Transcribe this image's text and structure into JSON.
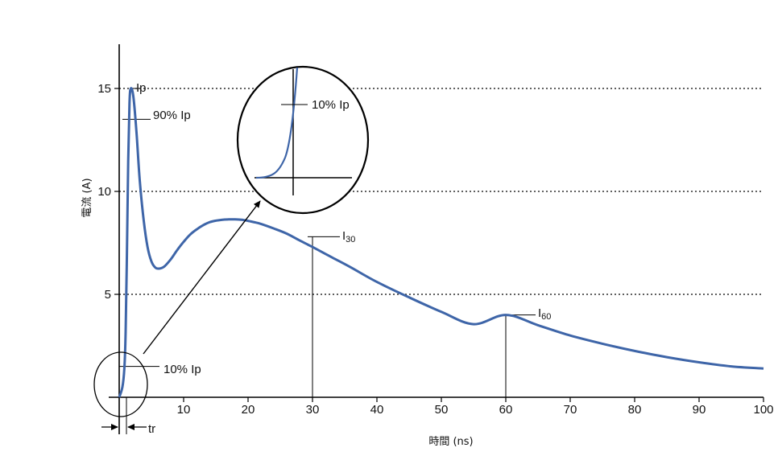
{
  "chart_data": {
    "type": "line",
    "xlabel": "時間 (ns)",
    "ylabel": "電流 (A)",
    "xlim": [
      0,
      100
    ],
    "ylim": [
      0,
      17
    ],
    "x_ticks": [
      "10",
      "20",
      "30",
      "40",
      "50",
      "60",
      "70",
      "80",
      "90",
      "100"
    ],
    "y_ticks": [
      "5",
      "10",
      "15"
    ],
    "grid": "horizontal dotted at 5, 10, 15",
    "line_color": "#3e65a8",
    "series": [
      {
        "x": [
          0,
          0.5,
          0.8,
          1,
          1.2,
          1.4,
          1.6,
          1.8,
          2.2,
          2.7,
          3.2,
          3.8,
          4.4,
          5,
          5.6,
          6.2,
          7,
          8,
          9,
          10,
          11,
          12,
          13,
          14,
          15,
          16,
          17,
          18,
          19,
          20,
          21,
          22,
          24,
          26,
          28,
          30,
          33,
          36,
          40,
          45,
          50,
          55,
          60,
          65,
          70,
          75,
          80,
          85,
          90,
          95,
          100
        ],
        "y": [
          0,
          0.5,
          1.4,
          3.2,
          7,
          11.5,
          14.3,
          15.0,
          14.6,
          12.8,
          10.5,
          8.6,
          7.3,
          6.6,
          6.3,
          6.25,
          6.35,
          6.7,
          7.15,
          7.55,
          7.9,
          8.15,
          8.35,
          8.5,
          8.58,
          8.62,
          8.64,
          8.64,
          8.62,
          8.57,
          8.5,
          8.42,
          8.2,
          7.95,
          7.62,
          7.3,
          6.8,
          6.3,
          5.6,
          4.85,
          4.15,
          3.55,
          4.0,
          3.5,
          3.0,
          2.6,
          2.25,
          1.95,
          1.7,
          1.5,
          1.4
        ]
      }
    ],
    "annotations": {
      "ip": "Ip",
      "ninety": "90% Ip",
      "ten": "10% Ip",
      "inset_ten": "10% Ip",
      "i30_main": "I",
      "i30_sub": "30",
      "i60_main": "I",
      "i60_sub": "60",
      "tr": "tr"
    }
  }
}
